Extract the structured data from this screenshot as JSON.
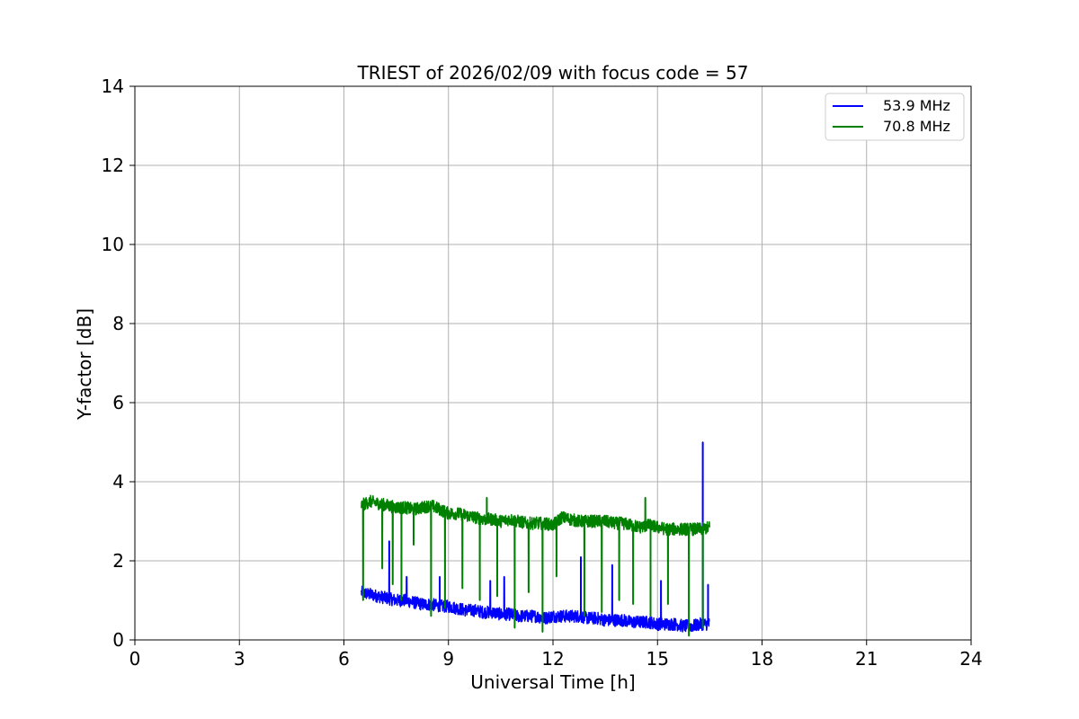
{
  "chart_data": {
    "type": "line",
    "title": "TRIEST of 2026/02/09 with focus code = 57",
    "xlabel": "Universal Time [h]",
    "ylabel": "Y-factor [dB]",
    "xlim": [
      0,
      24
    ],
    "ylim": [
      0,
      14
    ],
    "xticks": [
      0,
      3,
      6,
      9,
      12,
      15,
      18,
      21,
      24
    ],
    "yticks": [
      0,
      2,
      4,
      6,
      8,
      10,
      12,
      14
    ],
    "grid": true,
    "legend_position": "top-right",
    "series": [
      {
        "name": "53.9 MHz",
        "color": "#0000ff",
        "x": [
          6.5,
          6.75,
          7.0,
          7.25,
          7.5,
          7.75,
          8.0,
          8.25,
          8.5,
          8.75,
          9.0,
          9.25,
          9.5,
          9.75,
          10.0,
          10.25,
          10.5,
          10.75,
          11.0,
          11.25,
          11.5,
          11.75,
          12.0,
          12.25,
          12.5,
          12.75,
          13.0,
          13.25,
          13.5,
          13.75,
          14.0,
          14.25,
          14.5,
          14.75,
          15.0,
          15.25,
          15.5,
          15.75,
          16.0,
          16.25,
          16.5
        ],
        "y": [
          1.2,
          1.15,
          1.1,
          1.05,
          1.0,
          1.0,
          0.95,
          0.9,
          0.9,
          0.85,
          0.85,
          0.8,
          0.75,
          0.75,
          0.7,
          0.7,
          0.65,
          0.65,
          0.6,
          0.6,
          0.6,
          0.55,
          0.6,
          0.6,
          0.6,
          0.6,
          0.55,
          0.55,
          0.5,
          0.5,
          0.5,
          0.45,
          0.45,
          0.45,
          0.4,
          0.4,
          0.4,
          0.35,
          0.35,
          0.4,
          0.4
        ],
        "spikes": [
          {
            "x": 7.3,
            "y": 2.5
          },
          {
            "x": 7.8,
            "y": 1.6
          },
          {
            "x": 8.75,
            "y": 1.6
          },
          {
            "x": 10.2,
            "y": 1.5
          },
          {
            "x": 10.6,
            "y": 1.6
          },
          {
            "x": 12.8,
            "y": 2.1
          },
          {
            "x": 13.7,
            "y": 1.9
          },
          {
            "x": 15.1,
            "y": 1.5
          },
          {
            "x": 16.3,
            "y": 5.0
          },
          {
            "x": 16.45,
            "y": 1.4
          }
        ]
      },
      {
        "name": "70.8 MHz",
        "color": "#008000",
        "x": [
          6.5,
          6.75,
          7.0,
          7.25,
          7.5,
          7.75,
          8.0,
          8.25,
          8.5,
          8.75,
          9.0,
          9.25,
          9.5,
          9.75,
          10.0,
          10.25,
          10.5,
          10.75,
          11.0,
          11.25,
          11.5,
          11.75,
          12.0,
          12.25,
          12.5,
          12.75,
          13.0,
          13.25,
          13.5,
          13.75,
          14.0,
          14.25,
          14.5,
          14.75,
          15.0,
          15.25,
          15.5,
          15.75,
          16.0,
          16.25,
          16.5
        ],
        "y": [
          3.4,
          3.5,
          3.45,
          3.4,
          3.35,
          3.35,
          3.3,
          3.35,
          3.4,
          3.3,
          3.2,
          3.2,
          3.15,
          3.1,
          3.05,
          3.05,
          3.0,
          3.05,
          3.0,
          2.95,
          2.95,
          2.95,
          2.9,
          3.1,
          3.05,
          3.0,
          3.0,
          3.0,
          3.0,
          2.95,
          2.95,
          2.9,
          2.85,
          2.9,
          2.85,
          2.8,
          2.8,
          2.8,
          2.8,
          2.8,
          2.85
        ],
        "dips": [
          {
            "x": 6.55,
            "y": 1.0
          },
          {
            "x": 7.1,
            "y": 1.8
          },
          {
            "x": 7.4,
            "y": 1.4
          },
          {
            "x": 7.65,
            "y": 1.0
          },
          {
            "x": 8.0,
            "y": 2.4
          },
          {
            "x": 8.5,
            "y": 0.6
          },
          {
            "x": 8.9,
            "y": 0.8
          },
          {
            "x": 9.4,
            "y": 1.3
          },
          {
            "x": 9.9,
            "y": 1.0
          },
          {
            "x": 10.4,
            "y": 1.1
          },
          {
            "x": 10.9,
            "y": 0.3
          },
          {
            "x": 11.3,
            "y": 1.2
          },
          {
            "x": 11.7,
            "y": 0.2
          },
          {
            "x": 12.1,
            "y": 1.6
          },
          {
            "x": 12.9,
            "y": 0.6
          },
          {
            "x": 13.4,
            "y": 0.7
          },
          {
            "x": 13.9,
            "y": 1.0
          },
          {
            "x": 14.3,
            "y": 0.9
          },
          {
            "x": 14.8,
            "y": 0.6
          },
          {
            "x": 15.3,
            "y": 0.9
          },
          {
            "x": 15.9,
            "y": 0.1
          },
          {
            "x": 16.3,
            "y": 0.3
          }
        ],
        "spikes": [
          {
            "x": 10.1,
            "y": 3.6
          },
          {
            "x": 14.65,
            "y": 3.6
          }
        ]
      }
    ]
  }
}
